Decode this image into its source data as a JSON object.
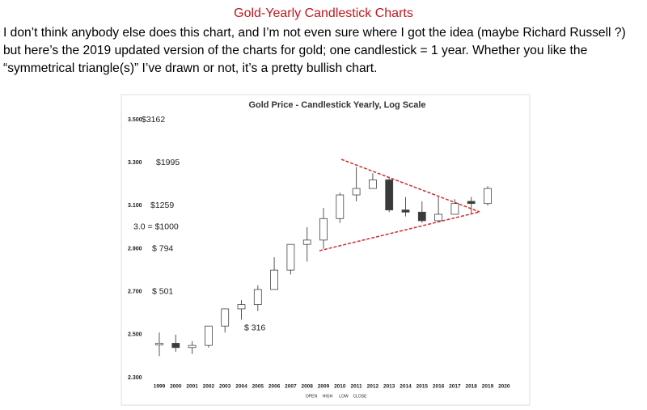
{
  "document": {
    "title": "Gold-Yearly Candlestick Charts",
    "paragraph": "I don’t think anybody else does this chart, and I’m not even sure where I got the idea (maybe Richard Russell ?) but here’s the 2019 updated version of the charts for gold; one candlestick = 1 year.  Whether you like the “symmetrical triangle(s)” I’ve drawn or not, it’s a pretty bullish chart."
  },
  "chart_data": {
    "type": "candlestick",
    "title": "Gold Price - Candlestick Yearly, Log Scale",
    "categories": [
      "1999",
      "2000",
      "2001",
      "2002",
      "2003",
      "2004",
      "2005",
      "2006",
      "2007",
      "2008",
      "2009",
      "2010",
      "2011",
      "2012",
      "2013",
      "2014",
      "2015",
      "2016",
      "2017",
      "2018",
      "2019",
      "2020"
    ],
    "series": [
      {
        "name": "OPEN",
        "values": [
          2.46,
          2.46,
          2.44,
          2.45,
          2.54,
          2.62,
          2.64,
          2.71,
          2.8,
          2.92,
          2.94,
          3.04,
          3.15,
          3.18,
          3.22,
          3.08,
          3.07,
          3.03,
          3.06,
          3.12,
          3.11,
          null
        ]
      },
      {
        "name": "HIGH",
        "values": [
          2.51,
          2.5,
          2.47,
          2.54,
          2.62,
          2.66,
          2.73,
          2.86,
          2.92,
          3.0,
          3.09,
          3.16,
          3.28,
          3.25,
          3.23,
          3.14,
          3.12,
          3.14,
          3.13,
          3.14,
          3.19,
          null
        ]
      },
      {
        "name": "LOW",
        "values": [
          2.4,
          2.42,
          2.41,
          2.44,
          2.51,
          2.57,
          2.61,
          2.71,
          2.78,
          2.84,
          2.9,
          3.02,
          3.12,
          3.18,
          3.07,
          3.05,
          3.02,
          3.03,
          3.06,
          3.06,
          3.1,
          null
        ]
      },
      {
        "name": "CLOSE",
        "values": [
          2.46,
          2.44,
          2.45,
          2.54,
          2.62,
          2.64,
          2.71,
          2.8,
          2.92,
          2.94,
          3.04,
          3.15,
          3.18,
          3.22,
          3.08,
          3.07,
          3.03,
          3.06,
          3.11,
          3.11,
          3.18,
          null
        ]
      }
    ],
    "ylim": [
      2.3,
      3.5
    ],
    "yticks": [
      {
        "value": 2.3,
        "label": "2.300"
      },
      {
        "value": 2.5,
        "label": "2.500"
      },
      {
        "value": 2.7,
        "label": "2.700"
      },
      {
        "value": 2.9,
        "label": "2.900"
      },
      {
        "value": 3.1,
        "label": "3.100"
      },
      {
        "value": 3.3,
        "label": "3.300"
      },
      {
        "value": 3.5,
        "label": "3.500"
      }
    ],
    "annotations": [
      {
        "text": "$3162",
        "y": 3.5
      },
      {
        "text": "$1995",
        "y": 3.3
      },
      {
        "text": "$1259",
        "y": 3.1
      },
      {
        "text": "3.0 = $1000",
        "y": 3.0
      },
      {
        "text": "$ 794",
        "y": 2.9
      },
      {
        "text": "$ 501",
        "y": 2.7
      },
      {
        "text": "$ 316",
        "y": 2.53
      }
    ],
    "up_color": "#ffffff",
    "down_color": "#3a3a3a",
    "grid": false
  }
}
